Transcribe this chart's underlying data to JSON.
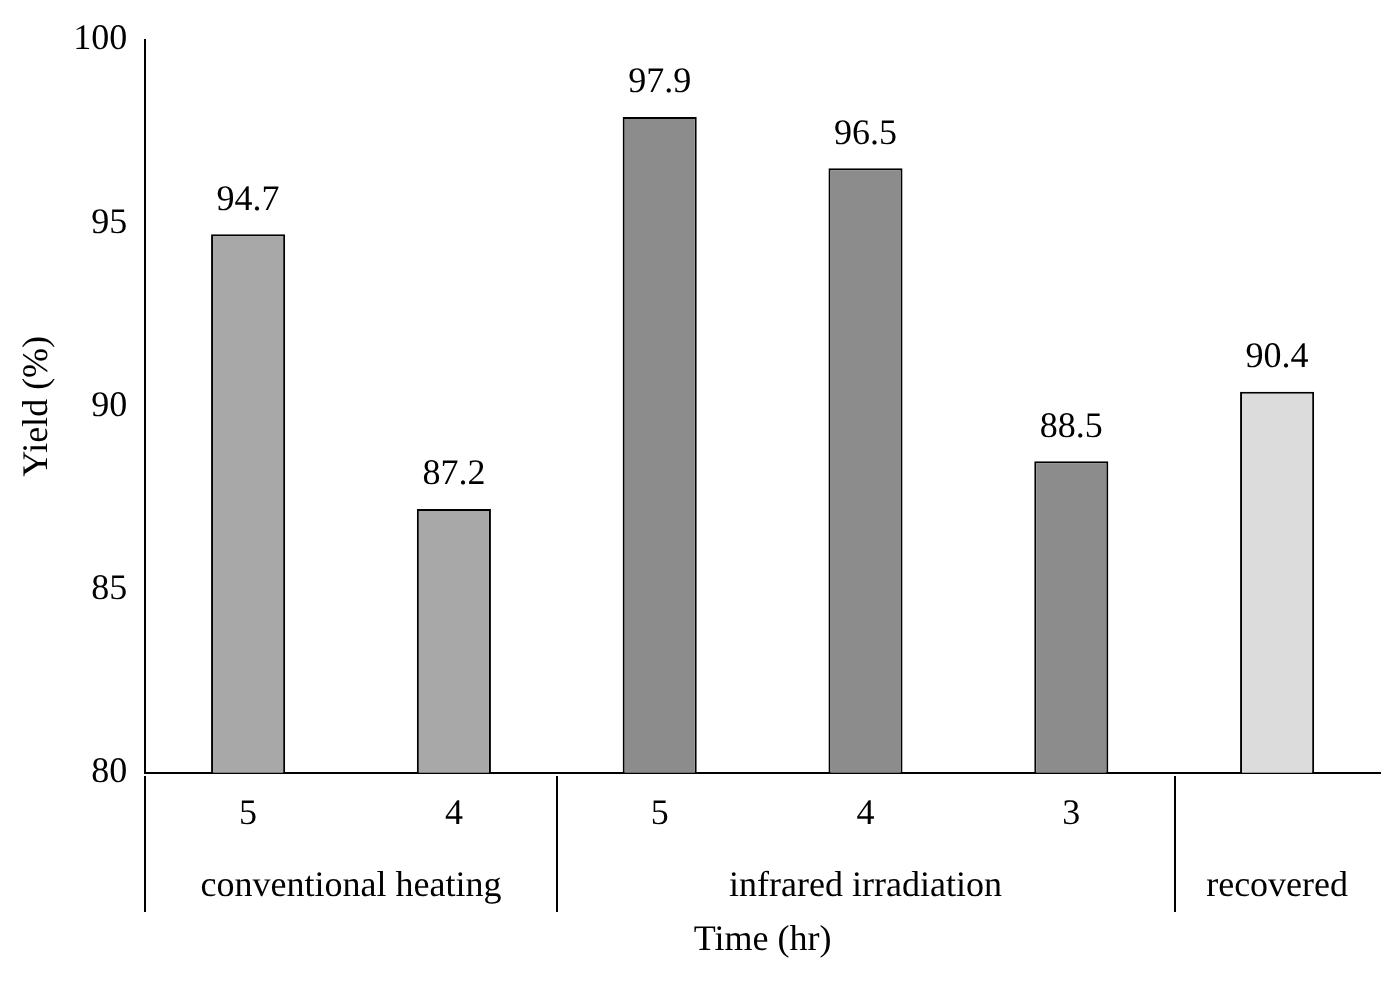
{
  "chart_data": {
    "type": "bar",
    "categories": [
      "5",
      "4",
      "5",
      "4",
      "3",
      null
    ],
    "values": [
      94.7,
      87.2,
      97.9,
      96.5,
      88.5,
      90.4
    ],
    "colors": [
      "#a8a8a8",
      "#a8a8a8",
      "#8c8c8c",
      "#8c8c8c",
      "#8c8c8c",
      "#dcdcdc"
    ],
    "ylim": [
      80,
      100
    ],
    "yticks": [
      80,
      85,
      90,
      95,
      100
    ],
    "ylabel": "Yield (%)",
    "xlabel": "Time (hr)",
    "annotations": [
      "conventional heating",
      "infrared irradiation",
      "recovered"
    ],
    "data_labels": true,
    "grid": false,
    "legend": false
  }
}
